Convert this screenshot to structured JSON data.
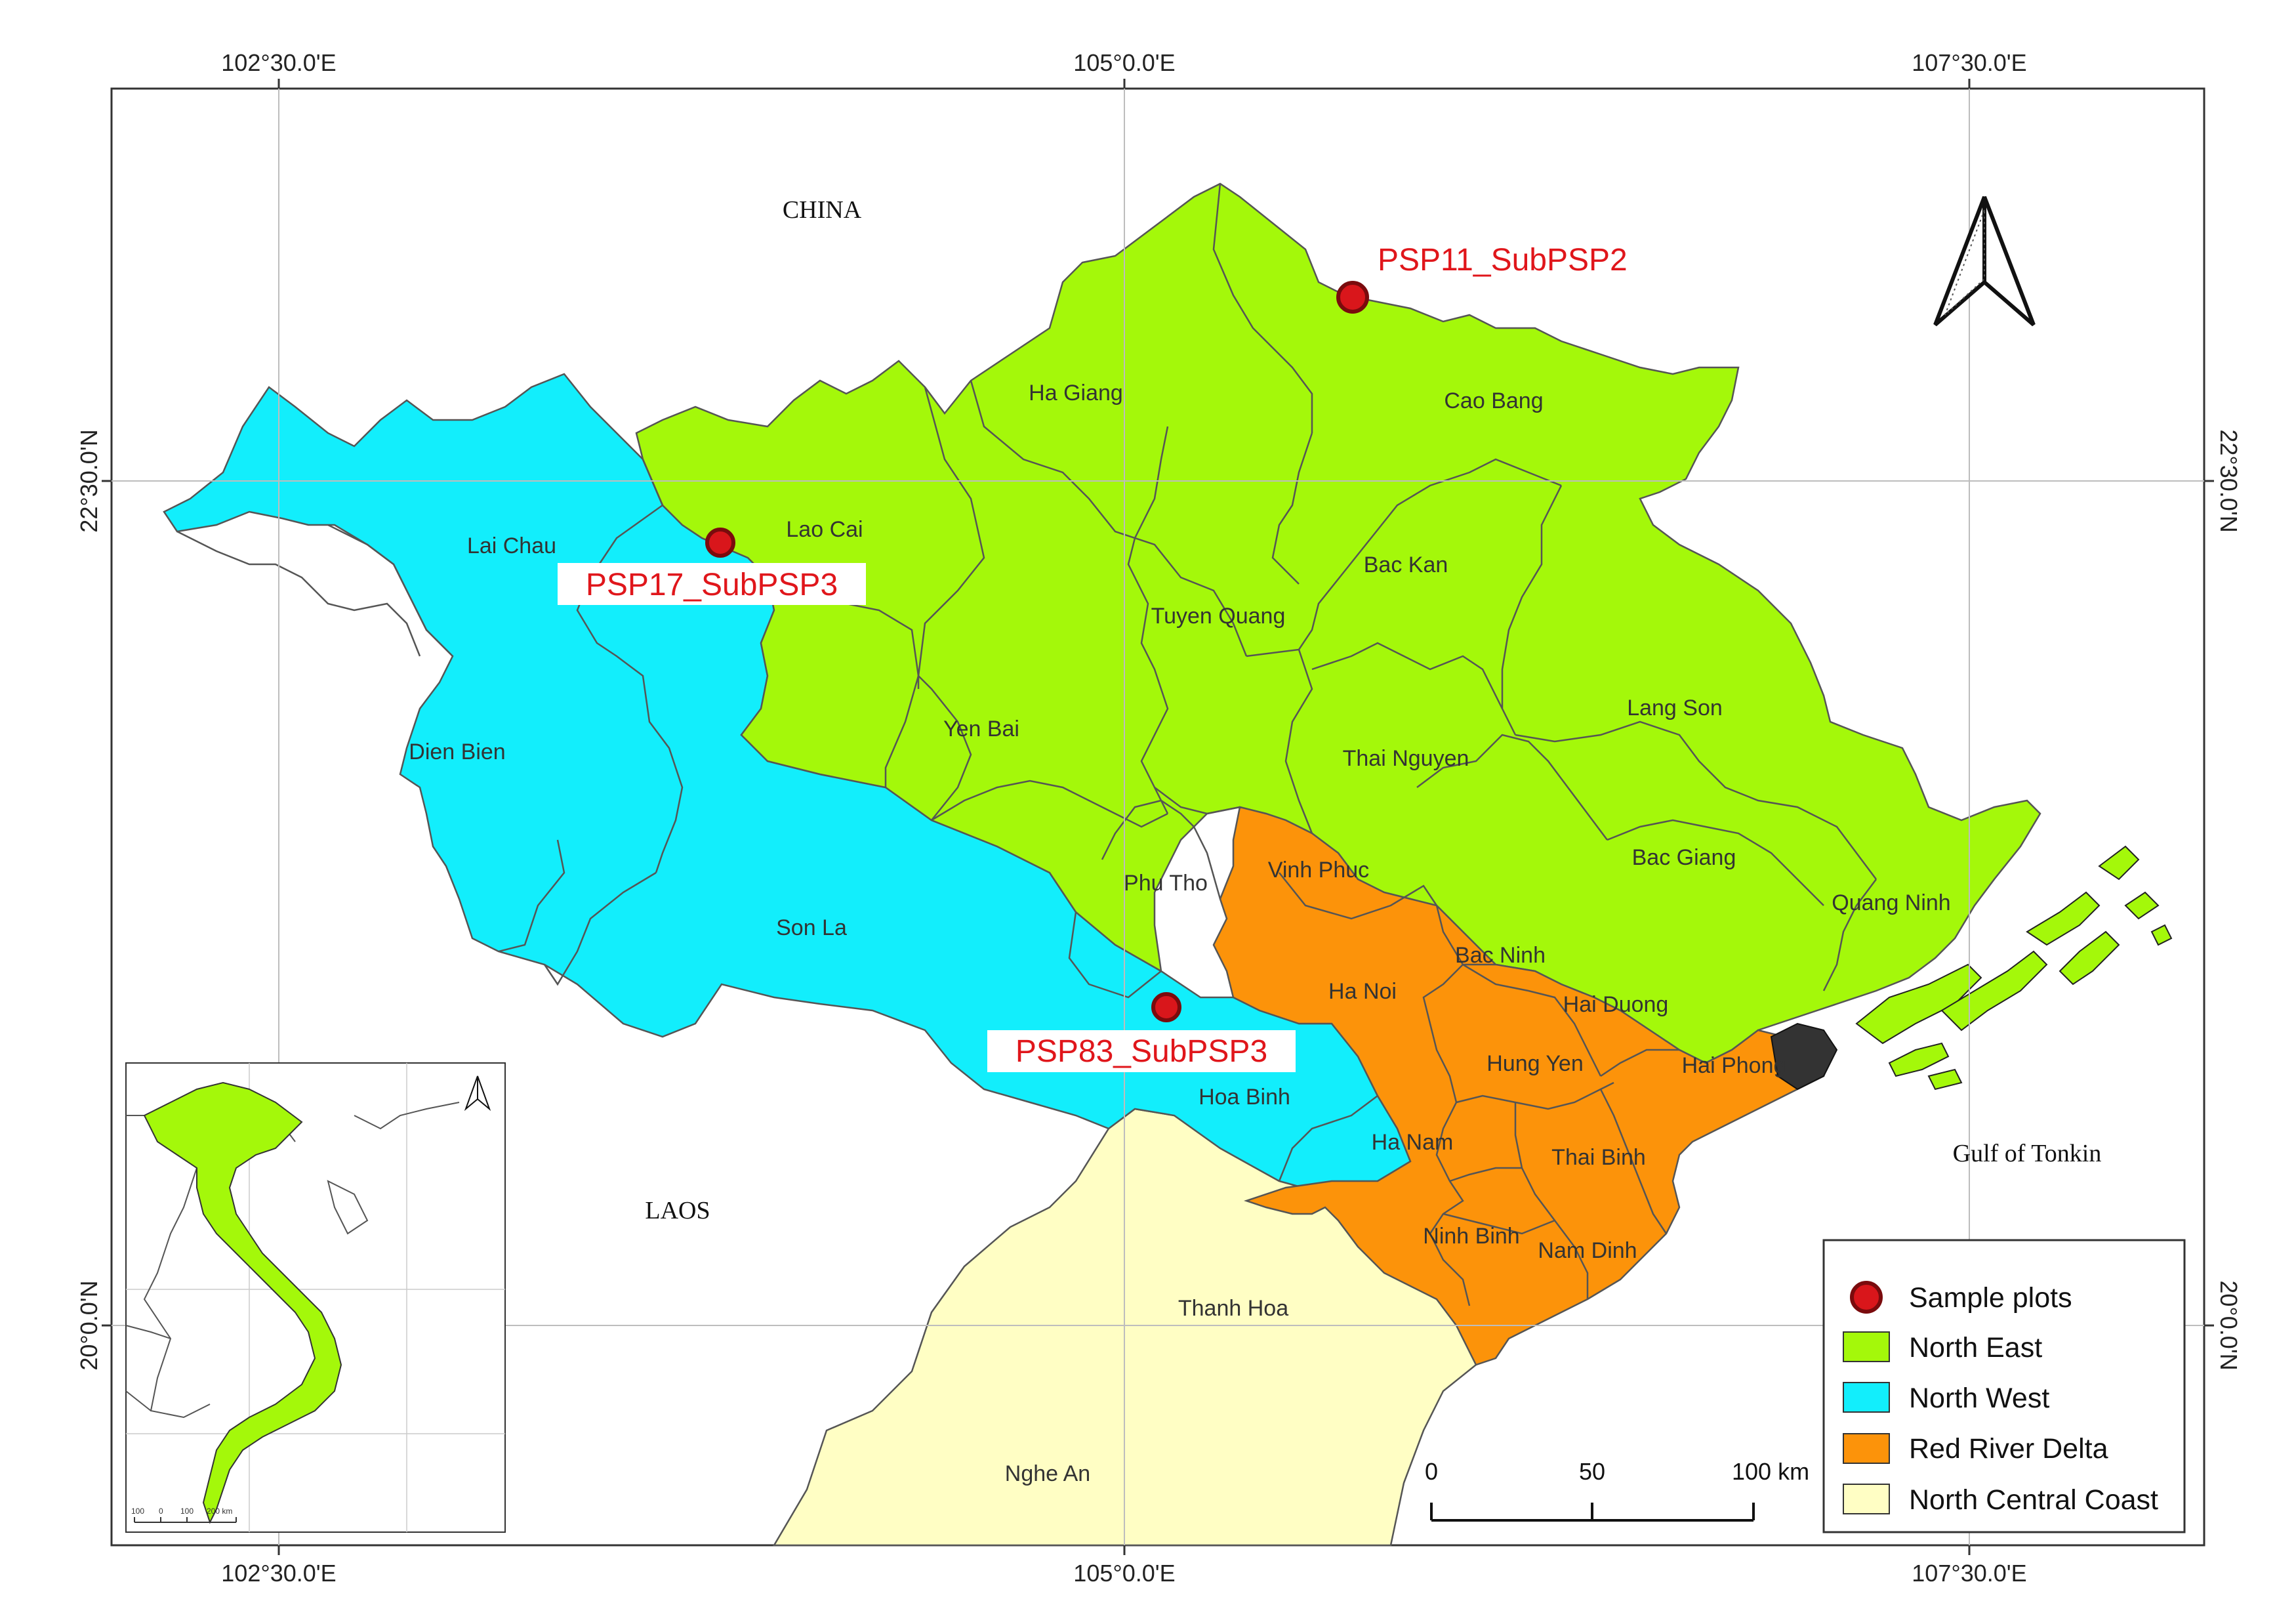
{
  "map": {
    "coords_top": [
      "102°30.0'E",
      "105°0.0'E",
      "107°30.0'E"
    ],
    "coords_bottom": [
      "102°30.0'E",
      "105°0.0'E",
      "107°30.0'E"
    ],
    "coords_left": [
      "22°30.0'N",
      "20°0.0'N"
    ],
    "coords_right": [
      "22°30.0'N",
      "20°0.0'N"
    ],
    "countries": {
      "china": "CHINA",
      "laos": "LAOS",
      "gulf": "Gulf of Tonkin"
    },
    "provinces": {
      "ha_giang": "Ha Giang",
      "cao_bang": "Cao Bang",
      "lao_cai": "Lao Cai",
      "lai_chau": "Lai Chau",
      "bac_kan": "Bac Kan",
      "tuyen_quang": "Tuyen Quang",
      "yen_bai": "Yen Bai",
      "lang_son": "Lang Son",
      "dien_bien": "Dien Bien",
      "thai_nguyen": "Thai Nguyen",
      "vinh_phuc": "Vinh Phuc",
      "bac_giang": "Bac Giang",
      "phu_tho": "Phu Tho",
      "son_la": "Son La",
      "quang_ninh": "Quang Ninh",
      "bac_ninh": "Bac Ninh",
      "ha_noi": "Ha Noi",
      "hai_duong": "Hai Duong",
      "hung_yen": "Hung Yen",
      "hai_phong": "Hai Phong",
      "hoa_binh": "Hoa Binh",
      "ha_nam": "Ha Nam",
      "thai_binh": "Thai Binh",
      "ninh_binh": "Ninh Binh",
      "nam_dinh": "Nam Dinh",
      "thanh_hoa": "Thanh Hoa",
      "nghe_an": "Nghe An"
    },
    "sample_plots": [
      "PSP11_SubPSP2",
      "PSP17_SubPSP3",
      "PSP83_SubPSP3"
    ],
    "legend": [
      {
        "label": "Sample plots",
        "color": "#e0161b"
      },
      {
        "label": "North East",
        "color": "#a4f80a"
      },
      {
        "label": "North West",
        "color": "#12eefc"
      },
      {
        "label": "Red River Delta",
        "color": "#fc930a"
      },
      {
        "label": "North Central Coast",
        "color": "#fffec4"
      }
    ],
    "scale": {
      "labels": [
        "0",
        "50",
        "100 km"
      ]
    },
    "inset_scale": [
      "100",
      "0",
      "100",
      "200 km"
    ]
  }
}
